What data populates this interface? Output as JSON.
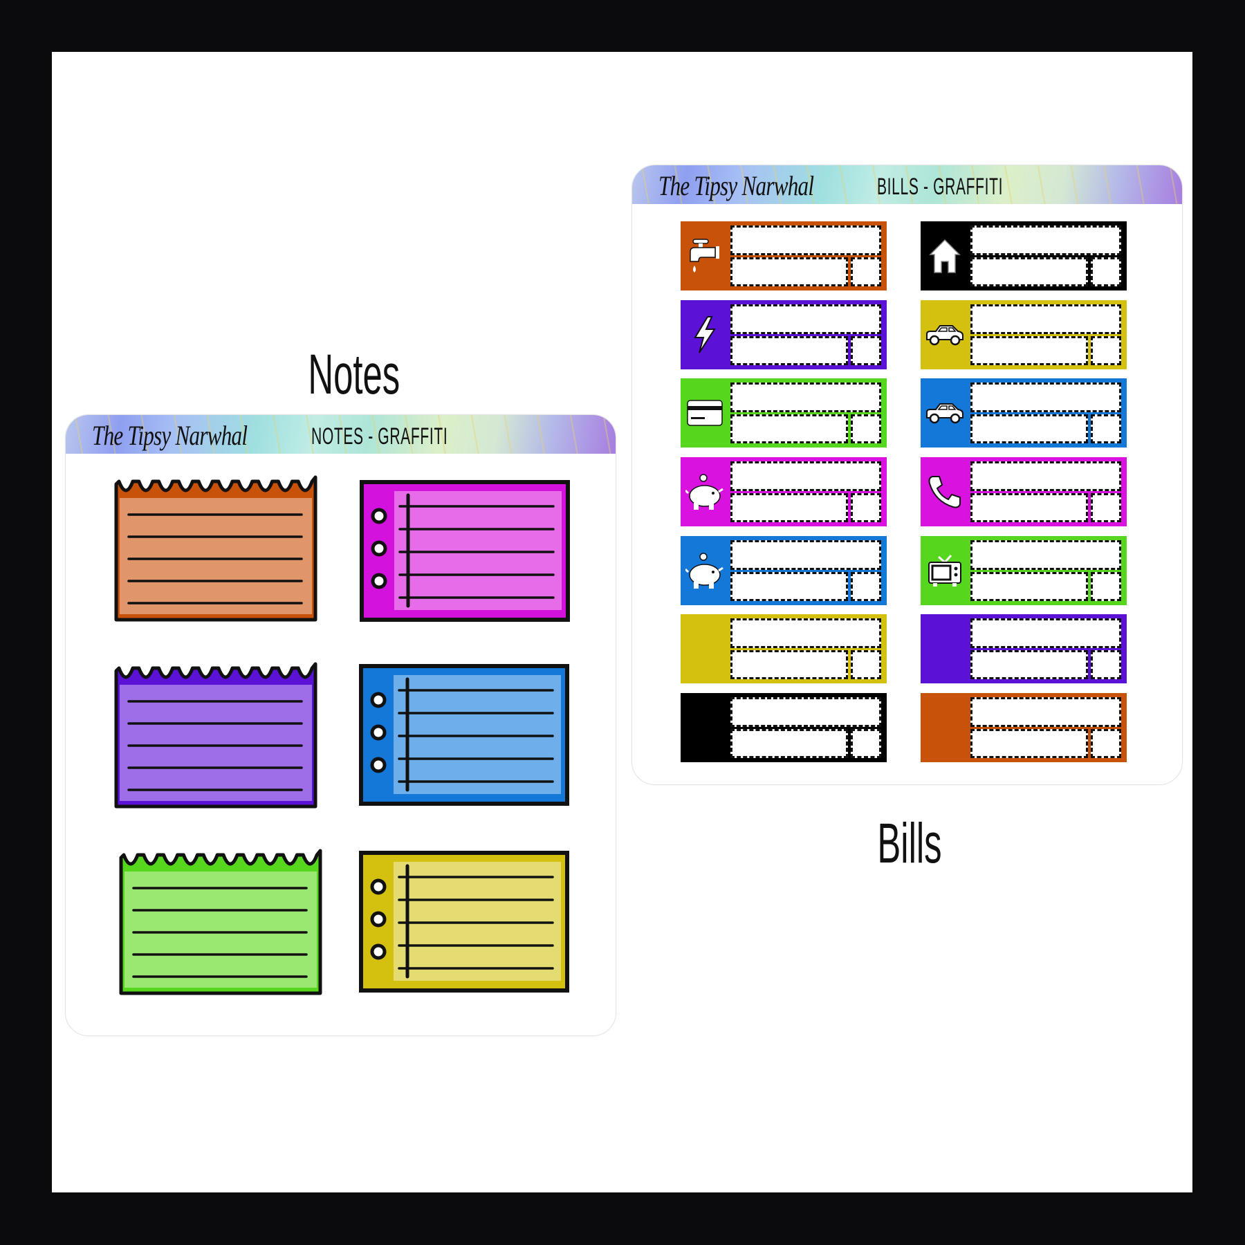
{
  "notes_sheet": {
    "caption": "Notes",
    "brand": "The Tipsy Narwhal",
    "title": "NOTES  -  GRAFFITI",
    "items": [
      {
        "style": "torn-pad",
        "color": "#c8520a",
        "fill": "#e0956a"
      },
      {
        "style": "spiral-page",
        "color": "#d412de",
        "fill": "#e66ce9"
      },
      {
        "style": "torn-pad",
        "color": "#5b12d6",
        "fill": "#9d6ee8"
      },
      {
        "style": "spiral-page",
        "color": "#1378d8",
        "fill": "#6eaeea"
      },
      {
        "style": "torn-pad",
        "color": "#57d61e",
        "fill": "#9ae872"
      },
      {
        "style": "spiral-page",
        "color": "#d4c00e",
        "fill": "#e4dc72"
      }
    ]
  },
  "bills_sheet": {
    "caption": "Bills",
    "brand": "The Tipsy Narwhal",
    "title": "BILLS  -  GRAFFITI",
    "left_column": [
      {
        "color": "#c8520a",
        "icon": "water-tap-icon"
      },
      {
        "color": "#5b12d6",
        "icon": "lightning-bolt-icon"
      },
      {
        "color": "#57d61e",
        "icon": "credit-card-icon"
      },
      {
        "color": "#d912e0",
        "icon": "piggy-bank-icon"
      },
      {
        "color": "#1378d8",
        "icon": "piggy-bank-icon"
      },
      {
        "color": "#d4c00e",
        "icon": ""
      },
      {
        "color": "#000000",
        "icon": ""
      }
    ],
    "right_column": [
      {
        "color": "#000000",
        "icon": "house-icon"
      },
      {
        "color": "#d4c00e",
        "icon": "car-icon"
      },
      {
        "color": "#1378d8",
        "icon": "car-icon"
      },
      {
        "color": "#d912e0",
        "icon": "phone-icon"
      },
      {
        "color": "#57d61e",
        "icon": "tv-icon"
      },
      {
        "color": "#5b12d6",
        "icon": ""
      },
      {
        "color": "#c8520a",
        "icon": ""
      }
    ]
  }
}
